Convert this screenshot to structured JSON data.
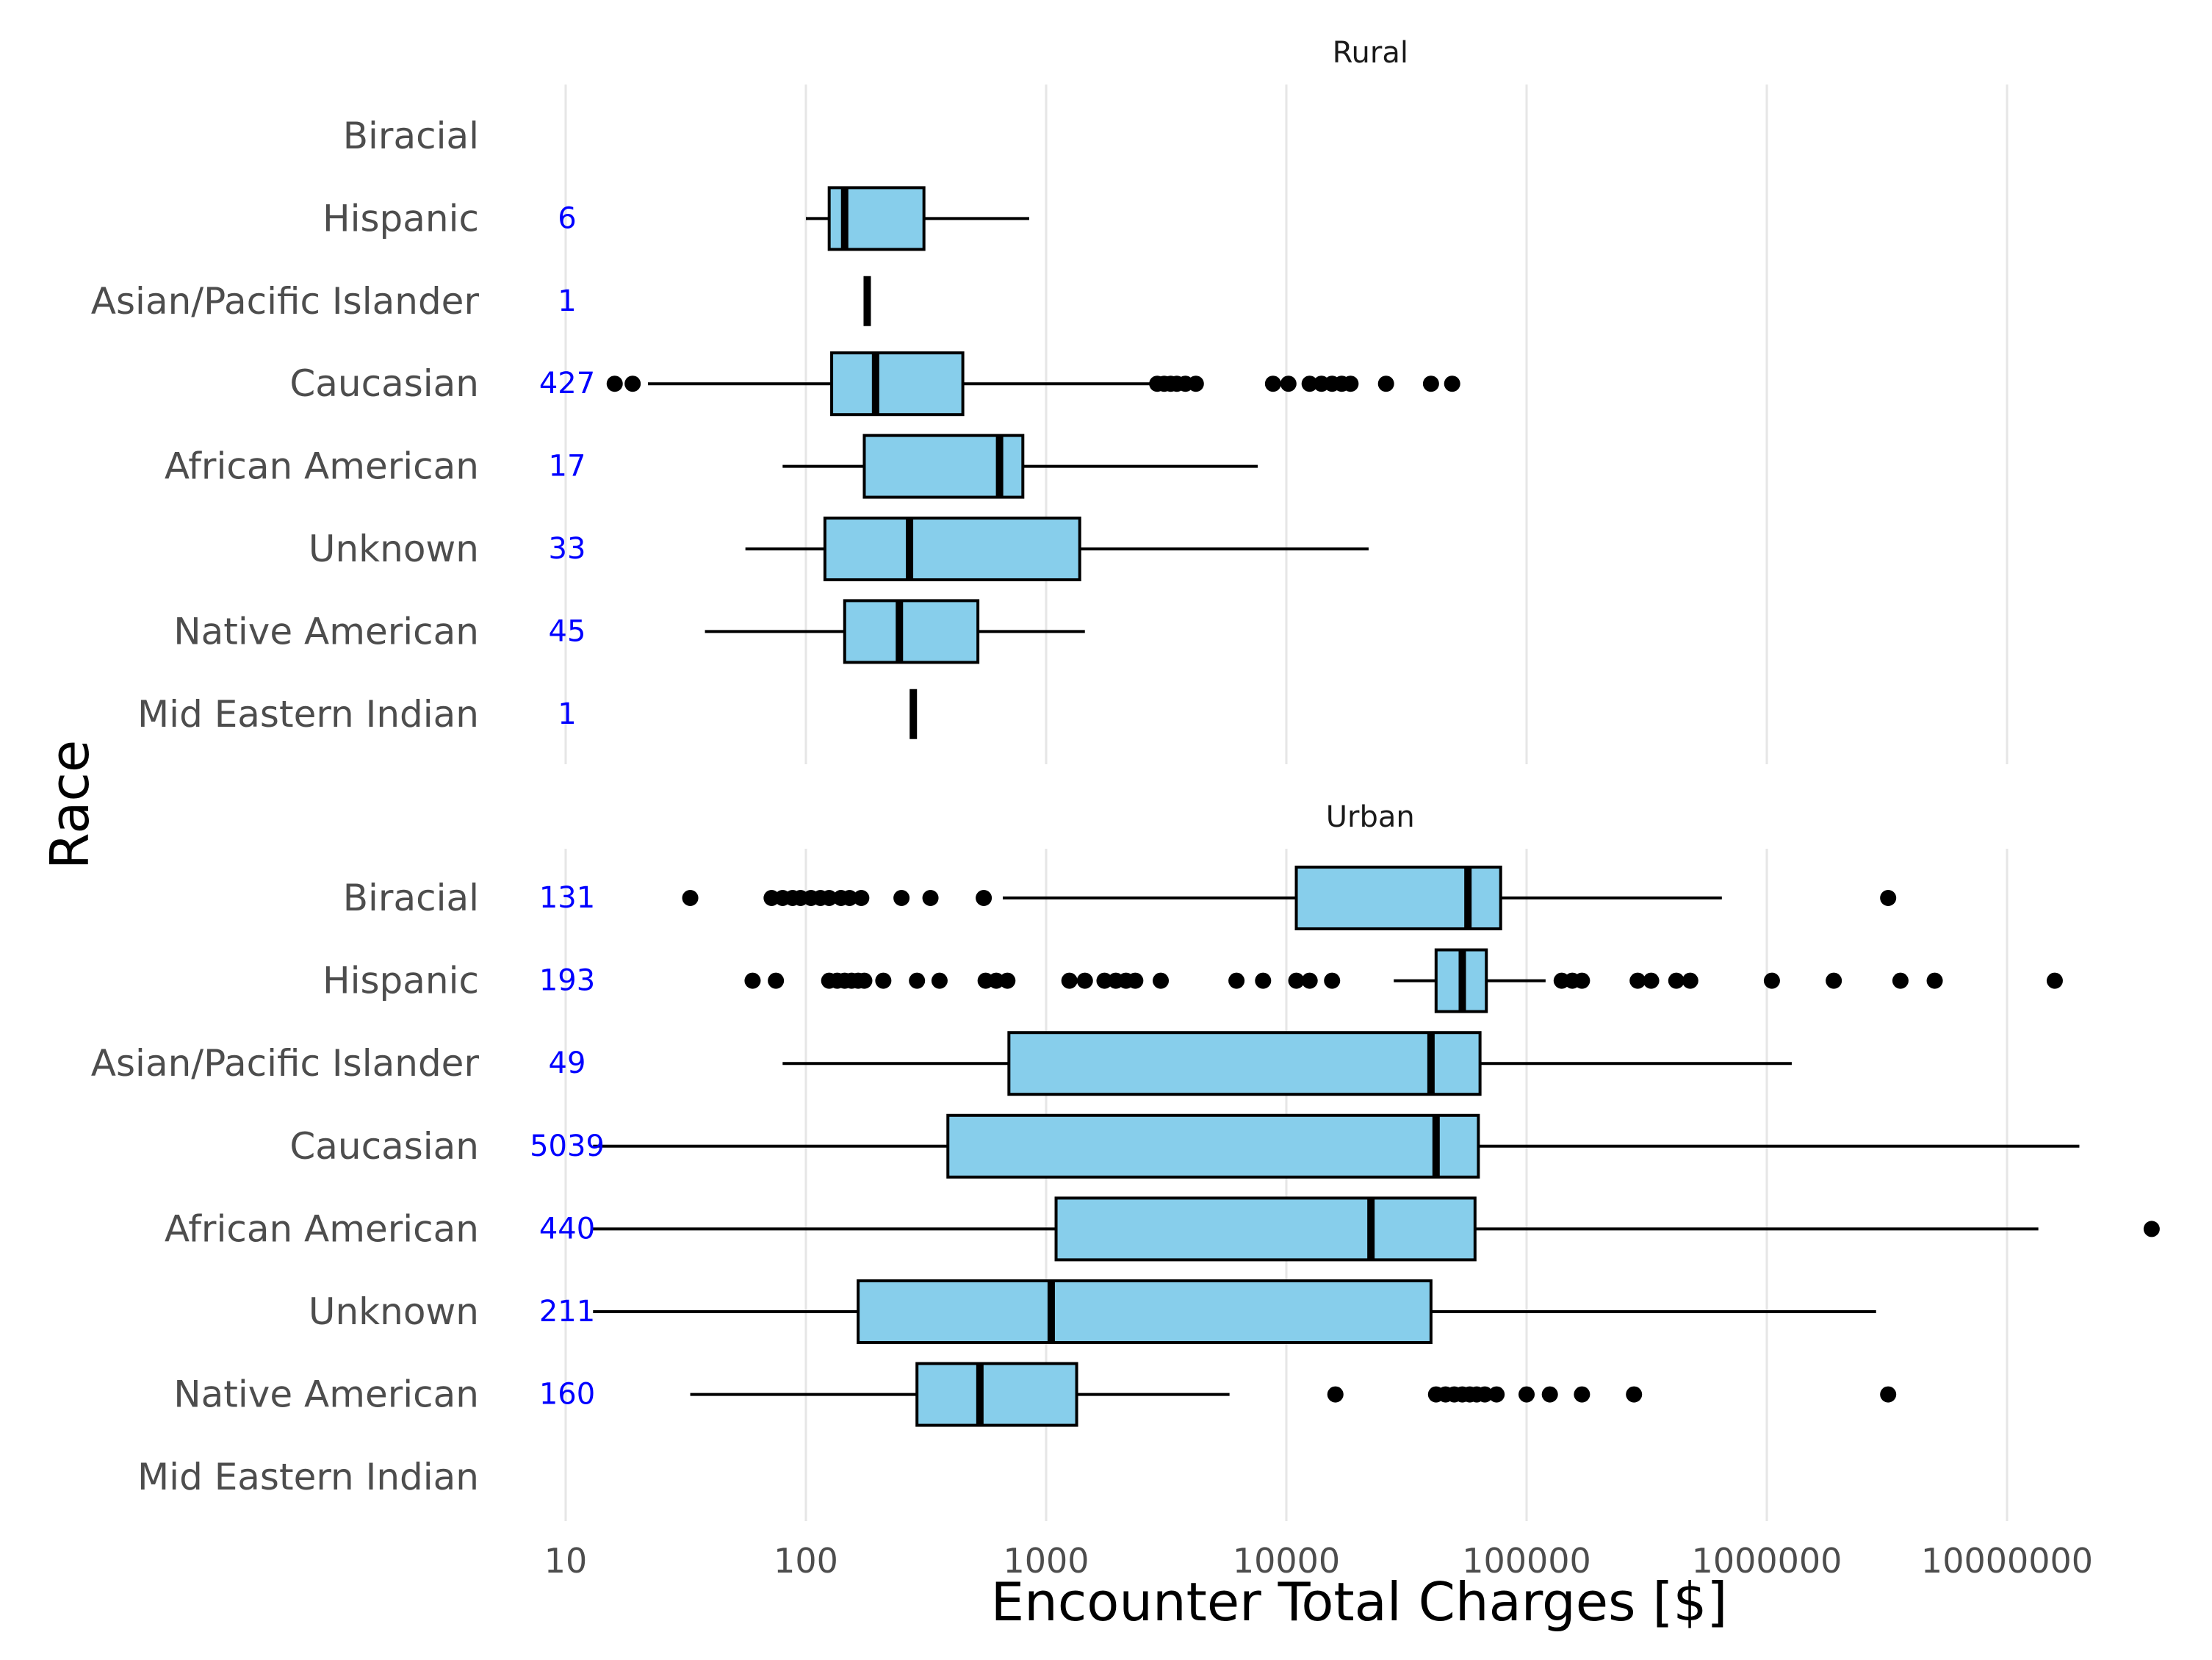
{
  "chart_data": {
    "type": "boxplot",
    "xlabel": "Encounter Total Charges [$]",
    "ylabel": "Race",
    "x_scale": "log10",
    "xlim": [
      10,
      50000000
    ],
    "x_ticks": [
      10,
      100,
      1000,
      10000,
      100000,
      1000000,
      10000000
    ],
    "x_tick_labels": [
      "10",
      "100",
      "1000",
      "10000",
      "100000",
      "1000000",
      "10000000"
    ],
    "categories": [
      "Biracial",
      "Hispanic",
      "Asian/Pacific Islander",
      "Caucasian",
      "African American",
      "Unknown",
      "Native American",
      "Mid Eastern Indian"
    ],
    "facets": [
      {
        "name": "Rural",
        "groups": [
          {
            "category": "Biracial",
            "n": null
          },
          {
            "category": "Hispanic",
            "n": "6",
            "min": 100,
            "q1": 125,
            "median": 145,
            "q3": 310,
            "max": 850,
            "outliers": []
          },
          {
            "category": "Asian/Pacific Islander",
            "n": "1",
            "min": 180,
            "q1": 180,
            "median": 180,
            "q3": 180,
            "max": 180,
            "outliers": []
          },
          {
            "category": "Caucasian",
            "n": "427",
            "min": 22,
            "q1": 128,
            "median": 195,
            "q3": 450,
            "max": 2800,
            "outliers": [
              16,
              19,
              2900,
              3100,
              3300,
              3500,
              3800,
              4200,
              8800,
              10200,
              12500,
              14000,
              15500,
              17000,
              18500,
              26000,
              40000,
              49000
            ]
          },
          {
            "category": "African American",
            "n": "17",
            "min": 80,
            "q1": 175,
            "median": 640,
            "q3": 800,
            "max": 7600,
            "outliers": []
          },
          {
            "category": "Unknown",
            "n": "33",
            "min": 56,
            "q1": 120,
            "median": 270,
            "q3": 1380,
            "max": 22000,
            "outliers": []
          },
          {
            "category": "Native American",
            "n": "45",
            "min": 38,
            "q1": 145,
            "median": 245,
            "q3": 520,
            "max": 1450,
            "outliers": []
          },
          {
            "category": "Mid Eastern Indian",
            "n": "1",
            "min": 280,
            "q1": 280,
            "median": 280,
            "q3": 280,
            "max": 280,
            "outliers": []
          }
        ]
      },
      {
        "name": "Urban",
        "groups": [
          {
            "category": "Biracial",
            "n": "131",
            "min": 660,
            "q1": 11000,
            "median": 57000,
            "q3": 78000,
            "max": 650000,
            "outliers": [
              33,
              72,
              80,
              88,
              95,
              105,
              115,
              125,
              140,
              152,
              170,
              250,
              330,
              550,
              3200000
            ]
          },
          {
            "category": "Hispanic",
            "n": "193",
            "min": 28000,
            "q1": 42000,
            "median": 54000,
            "q3": 68000,
            "max": 120000,
            "outliers": [
              60,
              75,
              125,
              135,
              145,
              155,
              165,
              175,
              210,
              290,
              360,
              560,
              620,
              690,
              1250,
              1450,
              1750,
              1950,
              2150,
              2350,
              3000,
              6200,
              8000,
              11000,
              12500,
              15500,
              140000,
              155000,
              170000,
              290000,
              330000,
              420000,
              480000,
              1050000,
              1900000,
              3600000,
              5000000,
              15800000
            ]
          },
          {
            "category": "Asian/Pacific Islander",
            "n": "49",
            "min": 80,
            "q1": 700,
            "median": 40000,
            "q3": 64000,
            "max": 1270000,
            "outliers": []
          },
          {
            "category": "Caucasian",
            "n": "5039",
            "min": 13,
            "q1": 390,
            "median": 42000,
            "q3": 63000,
            "max": 20000000,
            "outliers": []
          },
          {
            "category": "African American",
            "n": "440",
            "min": 13,
            "q1": 1100,
            "median": 22500,
            "q3": 61000,
            "max": 13500000,
            "outliers": [
              40000000
            ]
          },
          {
            "category": "Unknown",
            "n": "211",
            "min": 13,
            "q1": 165,
            "median": 1050,
            "q3": 40000,
            "max": 2850000,
            "outliers": []
          },
          {
            "category": "Native American",
            "n": "160",
            "min": 33,
            "q1": 290,
            "median": 530,
            "q3": 1340,
            "max": 5800,
            "outliers": [
              16000,
              42000,
              46000,
              50000,
              54000,
              58000,
              62000,
              67000,
              75000,
              100000,
              125000,
              170000,
              280000,
              3200000
            ]
          },
          {
            "category": "Mid Eastern Indian",
            "n": null
          }
        ]
      }
    ]
  }
}
